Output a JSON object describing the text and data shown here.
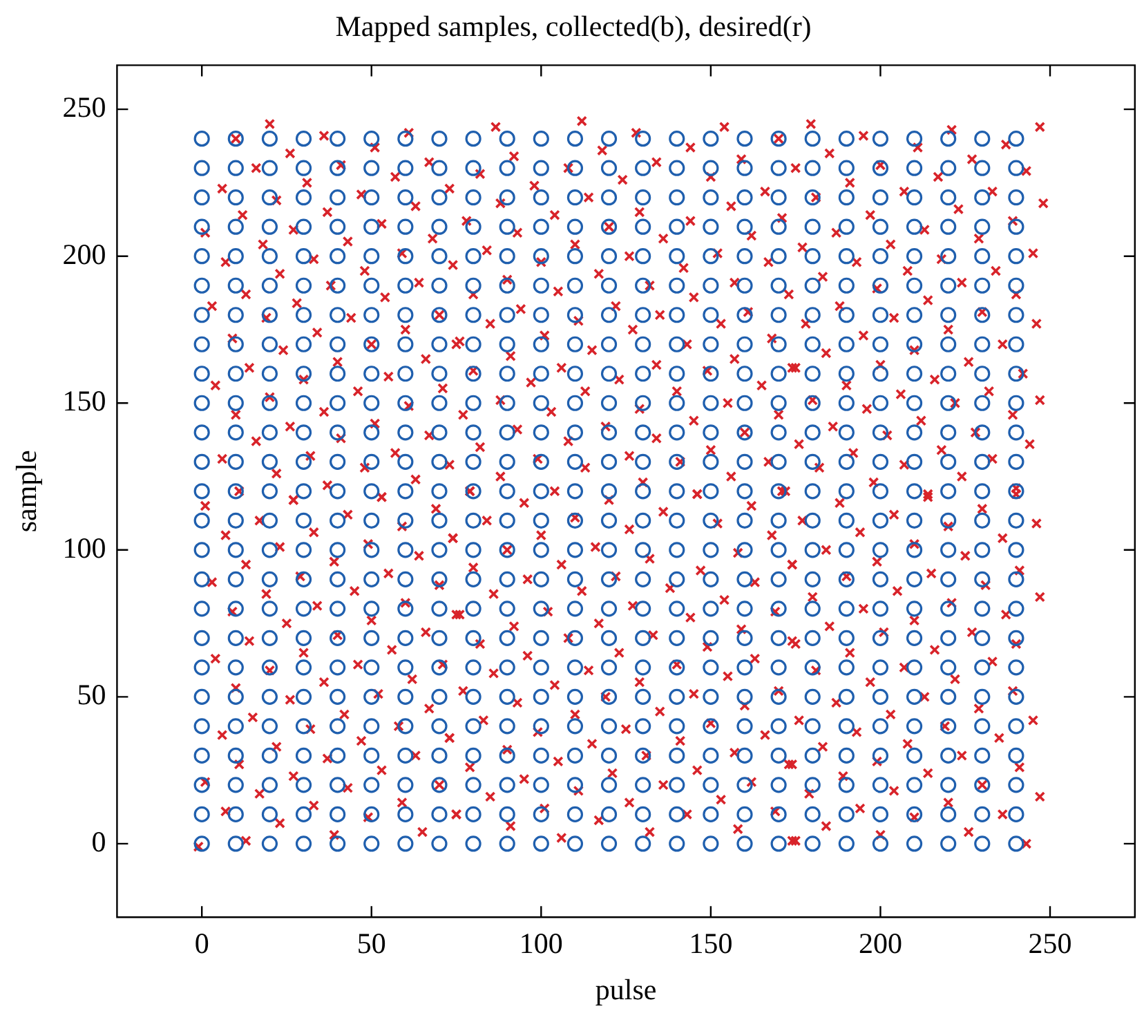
{
  "chart_data": {
    "type": "scatter",
    "title": "Mapped samples, collected(b), desired(r)",
    "xlabel": "pulse",
    "ylabel": "sample",
    "xlim": [
      -25,
      275
    ],
    "ylim": [
      -25,
      265
    ],
    "xticks": [
      0,
      50,
      100,
      150,
      200,
      250
    ],
    "yticks": [
      0,
      50,
      100,
      150,
      200,
      250
    ],
    "grid": false,
    "series": [
      {
        "type": "scatter",
        "marker": "circle",
        "color": "#1f5fae",
        "x": [
          0,
          10,
          20,
          30,
          40,
          50,
          60,
          70,
          80,
          90,
          100,
          110,
          120,
          130,
          140,
          150,
          160,
          170,
          180,
          190,
          200,
          210,
          220,
          230,
          240,
          0,
          10,
          20,
          30,
          40,
          50,
          60,
          70,
          80,
          90,
          100,
          110,
          120,
          130,
          140,
          150,
          160,
          170,
          180,
          190,
          200,
          210,
          220,
          230,
          240,
          0,
          10,
          20,
          30,
          40,
          50,
          60,
          70,
          80,
          90,
          100,
          110,
          120,
          130,
          140,
          150,
          160,
          170,
          180,
          190,
          200,
          210,
          220,
          230,
          240,
          0,
          10,
          20,
          30,
          40,
          50,
          60,
          70,
          80,
          90,
          100,
          110,
          120,
          130,
          140,
          150,
          160,
          170,
          180,
          190,
          200,
          210,
          220,
          230,
          240,
          0,
          10,
          20,
          30,
          40,
          50,
          60,
          70,
          80,
          90,
          100,
          110,
          120,
          130,
          140,
          150,
          160,
          170,
          180,
          190,
          200,
          210,
          220,
          230,
          240,
          0,
          10,
          20,
          30,
          40,
          50,
          60,
          70,
          80,
          90,
          100,
          110,
          120,
          130,
          140,
          150,
          160,
          170,
          180,
          190,
          200,
          210,
          220,
          230,
          240,
          0,
          10,
          20,
          30,
          40,
          50,
          60,
          70,
          80,
          90,
          100,
          110,
          120,
          130,
          140,
          150,
          160,
          170,
          180,
          190,
          200,
          210,
          220,
          230,
          240,
          0,
          10,
          20,
          30,
          40,
          50,
          60,
          70,
          80,
          90,
          100,
          110,
          120,
          130,
          140,
          150,
          160,
          170,
          180,
          190,
          200,
          210,
          220,
          230,
          240,
          0,
          10,
          20,
          30,
          40,
          50,
          60,
          70,
          80,
          90,
          100,
          110,
          120,
          130,
          140,
          150,
          160,
          170,
          180,
          190,
          200,
          210,
          220,
          230,
          240,
          0,
          10,
          20,
          30,
          40,
          50,
          60,
          70,
          80,
          90,
          100,
          110,
          120,
          130,
          140,
          150,
          160,
          170,
          180,
          190,
          200,
          210,
          220,
          230,
          240,
          0,
          10,
          20,
          30,
          40,
          50,
          60,
          70,
          80,
          90,
          100,
          110,
          120,
          130,
          140,
          150,
          160,
          170,
          180,
          190,
          200,
          210,
          220,
          230,
          240,
          0,
          10,
          20,
          30,
          40,
          50,
          60,
          70,
          80,
          90,
          100,
          110,
          120,
          130,
          140,
          150,
          160,
          170,
          180,
          190,
          200,
          210,
          220,
          230,
          240,
          0,
          10,
          20,
          30,
          40,
          50,
          60,
          70,
          80,
          90,
          100,
          110,
          120,
          130,
          140,
          150,
          160,
          170,
          180,
          190,
          200,
          210,
          220,
          230,
          240,
          0,
          10,
          20,
          30,
          40,
          50,
          60,
          70,
          80,
          90,
          100,
          110,
          120,
          130,
          140,
          150,
          160,
          170,
          180,
          190,
          200,
          210,
          220,
          230,
          240,
          0,
          10,
          20,
          30,
          40,
          50,
          60,
          70,
          80,
          90,
          100,
          110,
          120,
          130,
          140,
          150,
          160,
          170,
          180,
          190,
          200,
          210,
          220,
          230,
          240,
          0,
          10,
          20,
          30,
          40,
          50,
          60,
          70,
          80,
          90,
          100,
          110,
          120,
          130,
          140,
          150,
          160,
          170,
          180,
          190,
          200,
          210,
          220,
          230,
          240,
          0,
          10,
          20,
          30,
          40,
          50,
          60,
          70,
          80,
          90,
          100,
          110,
          120,
          130,
          140,
          150,
          160,
          170,
          180,
          190,
          200,
          210,
          220,
          230,
          240,
          0,
          10,
          20,
          30,
          40,
          50,
          60,
          70,
          80,
          90,
          100,
          110,
          120,
          130,
          140,
          150,
          160,
          170,
          180,
          190,
          200,
          210,
          220,
          230,
          240,
          0,
          10,
          20,
          30,
          40,
          50,
          60,
          70,
          80,
          90,
          100,
          110,
          120,
          130,
          140,
          150,
          160,
          170,
          180,
          190,
          200,
          210,
          220,
          230,
          240,
          0,
          10,
          20,
          30,
          40,
          50,
          60,
          70,
          80,
          90,
          100,
          110,
          120,
          130,
          140,
          150,
          160,
          170,
          180,
          190,
          200,
          210,
          220,
          230,
          240,
          0,
          10,
          20,
          30,
          40,
          50,
          60,
          70,
          80,
          90,
          100,
          110,
          120,
          130,
          140,
          150,
          160,
          170,
          180,
          190,
          200,
          210,
          220,
          230,
          240,
          0,
          10,
          20,
          30,
          40,
          50,
          60,
          70,
          80,
          90,
          100,
          110,
          120,
          130,
          140,
          150,
          160,
          170,
          180,
          190,
          200,
          210,
          220,
          230,
          240,
          0,
          10,
          20,
          30,
          40,
          50,
          60,
          70,
          80,
          90,
          100,
          110,
          120,
          130,
          140,
          150,
          160,
          170,
          180,
          190,
          200,
          210,
          220,
          230,
          240,
          0,
          10,
          20,
          30,
          40,
          50,
          60,
          70,
          80,
          90,
          100,
          110,
          120,
          130,
          140,
          150,
          160,
          170,
          180,
          190,
          200,
          210,
          220,
          230,
          240,
          0,
          10,
          20,
          30,
          40,
          50,
          60,
          70,
          80,
          90,
          100,
          110,
          120,
          130,
          140,
          150,
          160,
          170,
          180,
          190,
          200,
          210,
          220,
          230,
          240
        ],
        "values": [
          0,
          0,
          0,
          0,
          0,
          0,
          0,
          0,
          0,
          0,
          0,
          0,
          0,
          0,
          0,
          0,
          0,
          0,
          0,
          0,
          0,
          0,
          0,
          0,
          0,
          10,
          10,
          10,
          10,
          10,
          10,
          10,
          10,
          10,
          10,
          10,
          10,
          10,
          10,
          10,
          10,
          10,
          10,
          10,
          10,
          10,
          10,
          10,
          10,
          10,
          20,
          20,
          20,
          20,
          20,
          20,
          20,
          20,
          20,
          20,
          20,
          20,
          20,
          20,
          20,
          20,
          20,
          20,
          20,
          20,
          20,
          20,
          20,
          20,
          20,
          30,
          30,
          30,
          30,
          30,
          30,
          30,
          30,
          30,
          30,
          30,
          30,
          30,
          30,
          30,
          30,
          30,
          30,
          30,
          30,
          30,
          30,
          30,
          30,
          30,
          40,
          40,
          40,
          40,
          40,
          40,
          40,
          40,
          40,
          40,
          40,
          40,
          40,
          40,
          40,
          40,
          40,
          40,
          40,
          40,
          40,
          40,
          40,
          40,
          40,
          50,
          50,
          50,
          50,
          50,
          50,
          50,
          50,
          50,
          50,
          50,
          50,
          50,
          50,
          50,
          50,
          50,
          50,
          50,
          50,
          50,
          50,
          50,
          50,
          50,
          60,
          60,
          60,
          60,
          60,
          60,
          60,
          60,
          60,
          60,
          60,
          60,
          60,
          60,
          60,
          60,
          60,
          60,
          60,
          60,
          60,
          60,
          60,
          60,
          60,
          70,
          70,
          70,
          70,
          70,
          70,
          70,
          70,
          70,
          70,
          70,
          70,
          70,
          70,
          70,
          70,
          70,
          70,
          70,
          70,
          70,
          70,
          70,
          70,
          70,
          80,
          80,
          80,
          80,
          80,
          80,
          80,
          80,
          80,
          80,
          80,
          80,
          80,
          80,
          80,
          80,
          80,
          80,
          80,
          80,
          80,
          80,
          80,
          80,
          80,
          90,
          90,
          90,
          90,
          90,
          90,
          90,
          90,
          90,
          90,
          90,
          90,
          90,
          90,
          90,
          90,
          90,
          90,
          90,
          90,
          90,
          90,
          90,
          90,
          90,
          100,
          100,
          100,
          100,
          100,
          100,
          100,
          100,
          100,
          100,
          100,
          100,
          100,
          100,
          100,
          100,
          100,
          100,
          100,
          100,
          100,
          100,
          100,
          100,
          100,
          110,
          110,
          110,
          110,
          110,
          110,
          110,
          110,
          110,
          110,
          110,
          110,
          110,
          110,
          110,
          110,
          110,
          110,
          110,
          110,
          110,
          110,
          110,
          110,
          110,
          120,
          120,
          120,
          120,
          120,
          120,
          120,
          120,
          120,
          120,
          120,
          120,
          120,
          120,
          120,
          120,
          120,
          120,
          120,
          120,
          120,
          120,
          120,
          120,
          120,
          130,
          130,
          130,
          130,
          130,
          130,
          130,
          130,
          130,
          130,
          130,
          130,
          130,
          130,
          130,
          130,
          130,
          130,
          130,
          130,
          130,
          130,
          130,
          130,
          130,
          140,
          140,
          140,
          140,
          140,
          140,
          140,
          140,
          140,
          140,
          140,
          140,
          140,
          140,
          140,
          140,
          140,
          140,
          140,
          140,
          140,
          140,
          140,
          140,
          140,
          150,
          150,
          150,
          150,
          150,
          150,
          150,
          150,
          150,
          150,
          150,
          150,
          150,
          150,
          150,
          150,
          150,
          150,
          150,
          150,
          150,
          150,
          150,
          150,
          150,
          160,
          160,
          160,
          160,
          160,
          160,
          160,
          160,
          160,
          160,
          160,
          160,
          160,
          160,
          160,
          160,
          160,
          160,
          160,
          160,
          160,
          160,
          160,
          160,
          160,
          170,
          170,
          170,
          170,
          170,
          170,
          170,
          170,
          170,
          170,
          170,
          170,
          170,
          170,
          170,
          170,
          170,
          170,
          170,
          170,
          170,
          170,
          170,
          170,
          170,
          180,
          180,
          180,
          180,
          180,
          180,
          180,
          180,
          180,
          180,
          180,
          180,
          180,
          180,
          180,
          180,
          180,
          180,
          180,
          180,
          180,
          180,
          180,
          180,
          180,
          190,
          190,
          190,
          190,
          190,
          190,
          190,
          190,
          190,
          190,
          190,
          190,
          190,
          190,
          190,
          190,
          190,
          190,
          190,
          190,
          190,
          190,
          190,
          190,
          190,
          200,
          200,
          200,
          200,
          200,
          200,
          200,
          200,
          200,
          200,
          200,
          200,
          200,
          200,
          200,
          200,
          200,
          200,
          200,
          200,
          200,
          200,
          200,
          200,
          200,
          210,
          210,
          210,
          210,
          210,
          210,
          210,
          210,
          210,
          210,
          210,
          210,
          210,
          210,
          210,
          210,
          210,
          210,
          210,
          210,
          210,
          210,
          210,
          210,
          210,
          220,
          220,
          220,
          220,
          220,
          220,
          220,
          220,
          220,
          220,
          220,
          220,
          220,
          220,
          220,
          220,
          220,
          220,
          220,
          220,
          220,
          220,
          220,
          220,
          220,
          230,
          230,
          230,
          230,
          230,
          230,
          230,
          230,
          230,
          230,
          230,
          230,
          230,
          230,
          230,
          230,
          230,
          230,
          230,
          230,
          230,
          230,
          230,
          230,
          230,
          240,
          240,
          240,
          240,
          240,
          240,
          240,
          240,
          240,
          240,
          240,
          240,
          240,
          240,
          240,
          240,
          240,
          240,
          240,
          240,
          240,
          240,
          240,
          240,
          240
        ]
      },
      {
        "type": "scatter",
        "marker": "cross",
        "color": "#d8232a",
        "x": [
          20,
          10,
          36,
          61,
          26,
          51,
          16,
          41,
          67,
          57,
          31,
          6,
          22,
          47,
          73,
          63,
          37,
          12,
          1,
          27,
          53,
          68,
          18,
          43,
          7,
          33,
          59,
          74,
          23,
          48,
          13,
          38,
          64,
          54,
          28,
          3,
          19,
          44,
          70,
          60,
          34,
          9,
          24,
          50,
          75,
          40,
          66,
          14,
          30,
          4,
          55,
          71,
          46,
          20,
          61,
          36,
          10,
          26,
          51,
          67,
          41,
          16,
          6,
          32,
          57,
          73,
          48,
          22,
          11,
          37,
          63,
          53,
          27,
          86.6,
          112,
          128,
          154,
          170,
          144,
          118,
          92,
          82,
          108,
          134,
          159,
          124,
          150,
          98,
          88,
          114,
          166,
          156,
          129,
          104,
          78,
          144,
          171,
          93,
          136,
          120,
          162,
          84,
          110,
          126,
          152,
          100,
          167,
          142,
          117,
          90,
          157,
          132,
          105,
          145,
          80,
          173,
          122,
          94,
          135,
          161,
          111,
          85,
          153,
          127,
          101,
          168,
          143,
          76,
          115,
          91,
          157,
          134,
          106,
          80,
          149,
          175,
          123,
          97,
          165,
          140,
          113,
          88,
          155,
          129,
          103,
          170,
          77,
          145,
          119,
          93,
          160,
          134,
          108,
          82,
          150,
          167,
          126,
          141,
          99,
          113,
          88,
          156,
          130,
          79,
          104,
          146,
          171,
          179.5,
          195,
          185,
          221,
          237,
          247,
          211,
          175,
          200,
          191,
          217,
          227,
          243,
          181,
          207,
          223,
          233,
          248,
          197,
          187,
          213,
          229,
          239,
          177,
          203,
          193,
          218,
          234,
          245,
          183,
          208,
          199,
          224,
          240,
          214,
          188,
          204,
          230,
          246,
          178,
          220,
          195,
          210,
          236,
          184,
          226,
          174,
          200,
          216,
          242,
          190,
          232,
          180,
          206,
          222,
          247,
          196,
          239,
          186,
          212,
          228,
          202,
          244,
          176,
          218,
          192,
          233,
          207,
          182,
          224,
          198,
          240,
          214,
          172,
          1,
          27,
          53,
          69,
          17,
          43,
          33,
          59,
          7,
          23,
          49,
          64,
          74,
          13,
          39,
          3,
          29,
          55,
          70,
          19,
          45,
          9,
          34,
          60,
          75,
          25,
          50,
          14,
          40,
          66,
          56,
          30,
          4,
          20,
          46,
          71,
          62,
          36,
          10,
          26,
          52,
          67,
          42,
          15,
          6,
          32,
          58,
          73,
          47,
          22,
          37,
          63,
          11,
          53,
          27,
          1,
          43,
          70,
          17,
          59,
          33,
          7,
          75,
          23,
          49,
          65,
          39,
          13,
          -1,
          79,
          95,
          120,
          146,
          162,
          84,
          110,
          136,
          152,
          74,
          100,
          126,
          168,
          90,
          116,
          132,
          158,
          174,
          80,
          106,
          96,
          122,
          147,
          163,
          138,
          112,
          86,
          127,
          154,
          102,
          76,
          144,
          169,
          92,
          117,
          159,
          133,
          108,
          82,
          149,
          123,
          174,
          96,
          140,
          163,
          114,
          86,
          155,
          129,
          104,
          77,
          145,
          170,
          119,
          93,
          160,
          135,
          110,
          83,
          150,
          125,
          99,
          166,
          141,
          73,
          115,
          90,
          157,
          131,
          105,
          79,
          146,
          174,
          121,
          95,
          162,
          136,
          111,
          85,
          153,
          126,
          101,
          169,
          143,
          75,
          117,
          91,
          158,
          132,
          106,
          175,
          188,
          214,
          240,
          177,
          204,
          230,
          194,
          220,
          246,
          184,
          210,
          236,
          199,
          225,
          174,
          190,
          215,
          241,
          205,
          231,
          180,
          195,
          221,
          247,
          210,
          237,
          185,
          201,
          227,
          175,
          240,
          216,
          191,
          207,
          233,
          181,
          222,
          197,
          239,
          213,
          187,
          229,
          203,
          176,
          245,
          219,
          193,
          235,
          208,
          183,
          224,
          199,
          241,
          173,
          214,
          189,
          230,
          204,
          179,
          247,
          220,
          194,
          236,
          210,
          184,
          226,
          200,
          174,
          243
        ],
        "values": [
          245,
          240,
          241,
          242,
          235,
          237,
          230,
          231,
          232,
          227,
          225,
          223,
          219,
          221,
          223,
          217,
          215,
          214,
          208,
          209,
          211,
          206,
          204,
          205,
          198,
          199,
          201,
          197,
          194,
          195,
          187,
          190,
          191,
          186,
          184,
          183,
          179,
          179,
          180,
          175,
          174,
          172,
          168,
          170,
          170,
          164,
          165,
          162,
          158,
          156,
          159,
          155,
          154,
          152,
          149,
          147,
          146,
          142,
          143,
          139,
          138,
          137,
          131,
          132,
          133,
          129,
          128,
          126,
          120,
          122,
          124,
          118,
          117,
          244,
          246,
          242,
          244,
          240,
          237,
          236,
          234,
          228,
          230,
          232,
          233,
          226,
          227,
          224,
          218,
          220,
          222,
          217,
          215,
          214,
          212,
          212,
          213,
          208,
          206,
          210,
          207,
          202,
          204,
          200,
          201,
          198,
          198,
          196,
          194,
          192,
          191,
          190,
          188,
          186,
          187,
          187,
          183,
          182,
          180,
          181,
          178,
          177,
          177,
          175,
          173,
          172,
          170,
          171,
          168,
          166,
          165,
          163,
          162,
          161,
          161,
          162,
          158,
          157,
          156,
          154,
          154,
          151,
          150,
          148,
          147,
          146,
          146,
          144,
          142,
          141,
          140,
          138,
          137,
          135,
          134,
          130,
          132,
          130,
          131,
          128,
          125,
          125,
          123,
          120,
          120,
          119,
          120,
          245,
          241,
          235,
          243,
          238,
          244,
          237,
          230,
          231,
          225,
          227,
          233,
          229,
          220,
          222,
          216,
          222,
          218,
          214,
          208,
          209,
          206,
          212,
          203,
          204,
          198,
          199,
          195,
          201,
          193,
          195,
          189,
          191,
          187,
          185,
          183,
          179,
          181,
          177,
          177,
          175,
          173,
          168,
          170,
          167,
          164,
          162,
          163,
          158,
          160,
          156,
          154,
          151,
          153,
          150,
          151,
          148,
          146,
          142,
          144,
          140,
          139,
          136,
          136,
          134,
          133,
          131,
          129,
          128,
          125,
          123,
          121,
          119,
          120,
          115,
          117,
          118,
          114,
          110,
          112,
          106,
          108,
          105,
          101,
          102,
          98,
          104,
          95,
          96,
          89,
          91,
          92,
          88,
          85,
          86,
          79,
          81,
          82,
          78,
          75,
          76,
          69,
          71,
          72,
          66,
          65,
          63,
          59,
          61,
          61,
          56,
          55,
          53,
          49,
          51,
          46,
          44,
          43,
          37,
          39,
          40,
          36,
          35,
          33,
          29,
          30,
          27,
          25,
          23,
          21,
          19,
          20,
          17,
          14,
          13,
          11,
          10,
          7,
          9,
          4,
          3,
          1,
          -1,
          120,
          116,
          117,
          119,
          115,
          110,
          111,
          113,
          109,
          104,
          105,
          107,
          105,
          100,
          101,
          97,
          99,
          95,
          94,
          95,
          90,
          91,
          93,
          89,
          87,
          86,
          85,
          81,
          83,
          79,
          78,
          77,
          79,
          74,
          75,
          73,
          71,
          70,
          68,
          67,
          65,
          69,
          64,
          61,
          63,
          59,
          58,
          57,
          55,
          54,
          52,
          51,
          52,
          50,
          48,
          47,
          45,
          44,
          42,
          41,
          39,
          38,
          37,
          35,
          36,
          34,
          32,
          31,
          30,
          28,
          26,
          25,
          27,
          24,
          22,
          21,
          20,
          18,
          16,
          15,
          14,
          12,
          11,
          10,
          10,
          8,
          6,
          5,
          4,
          2,
          1,
          116,
          118,
          119,
          110,
          112,
          114,
          106,
          108,
          109,
          100,
          102,
          104,
          96,
          98,
          95,
          91,
          92,
          93,
          86,
          88,
          84,
          80,
          82,
          84,
          76,
          78,
          74,
          72,
          72,
          68,
          68,
          66,
          65,
          60,
          62,
          59,
          56,
          55,
          52,
          50,
          48,
          46,
          44,
          42,
          42,
          40,
          38,
          36,
          34,
          33,
          30,
          28,
          26,
          27,
          24,
          23,
          20,
          18,
          17,
          16,
          14,
          12,
          10,
          9,
          6,
          4,
          3,
          1,
          0
        ]
      }
    ]
  }
}
